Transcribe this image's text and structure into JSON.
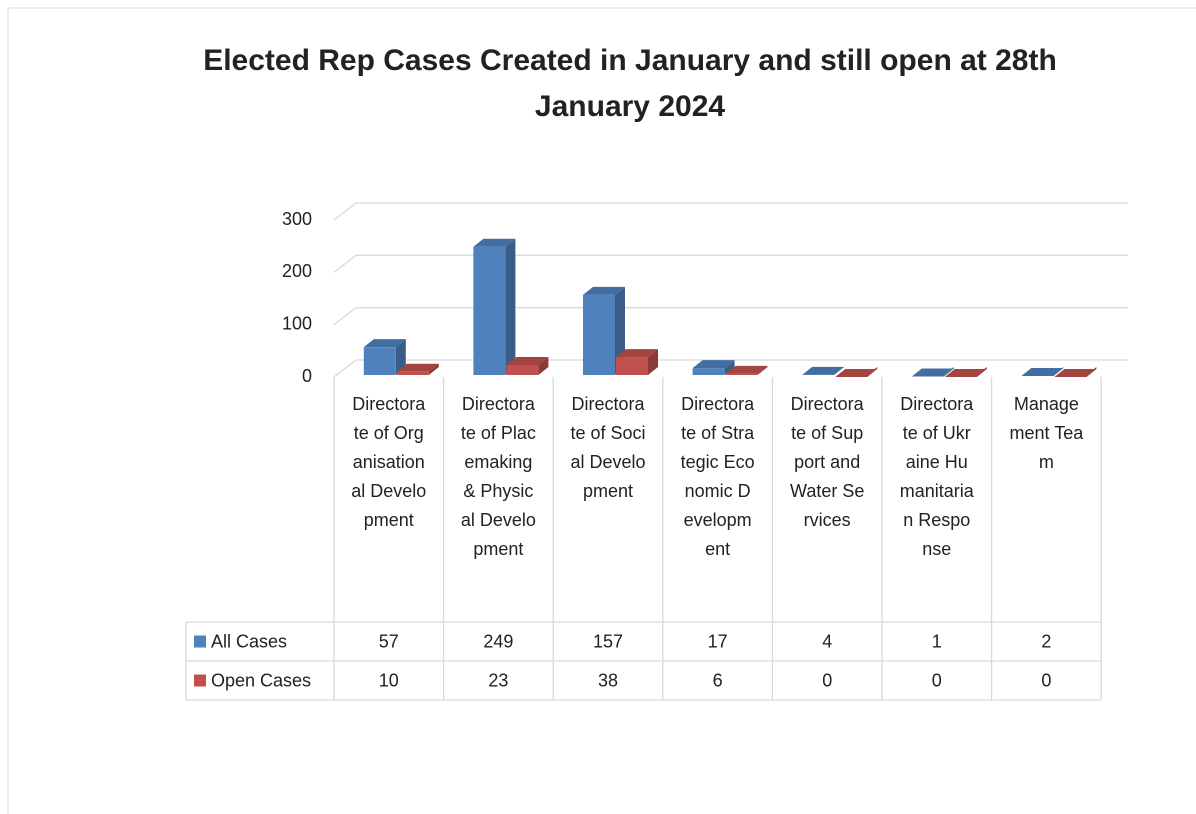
{
  "chart_data": {
    "type": "bar3d",
    "title": "Elected Rep Cases Created in January  and still open at 28th January 2024",
    "categories": [
      "Directorate of Organisational Development",
      "Directorate of Placemaking & Physical Development",
      "Directorate of Social Development",
      "Directorate of Strategic Economic Development",
      "Directorate of Support and Water Services",
      "Directorate of Ukraine Humanitarian Response",
      "Management Team"
    ],
    "series": [
      {
        "name": "All Cases",
        "color": "#4f81bd",
        "values": [
          57,
          249,
          157,
          17,
          4,
          1,
          2
        ]
      },
      {
        "name": "Open Cases",
        "color": "#c0504d",
        "values": [
          10,
          23,
          38,
          6,
          0,
          0,
          0
        ]
      }
    ],
    "ylim": [
      0,
      300
    ],
    "yticks": [
      0,
      100,
      200,
      300
    ],
    "grid": true,
    "data_table": true
  }
}
